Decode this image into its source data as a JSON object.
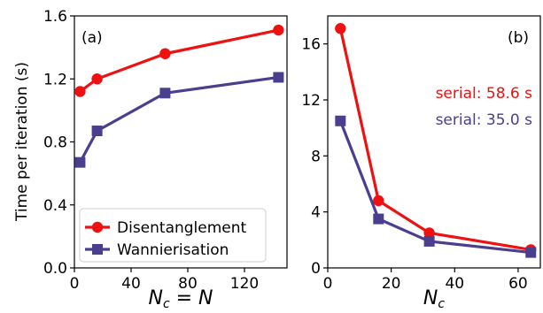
{
  "colors": {
    "disentanglement": "#ee1111",
    "wannierisation": "#4a3f8f"
  },
  "chart_data": [
    {
      "type": "line",
      "panel_label": "(a)",
      "ylabel": "Time per iteration (s)",
      "xlabel_main": "N",
      "xlabel_sub": "c",
      "xlabel_rest": " = N",
      "xlim": [
        0,
        150
      ],
      "ylim": [
        0,
        1.6
      ],
      "xticks": [
        0,
        40,
        80,
        120
      ],
      "yticks": [
        0.0,
        0.4,
        0.8,
        1.2,
        1.6
      ],
      "xtick_labels": [
        "0",
        "40",
        "80",
        "120"
      ],
      "ytick_labels": [
        "0.0",
        "0.4",
        "0.8",
        "1.2",
        "1.6"
      ],
      "legend_position": "bottom-right",
      "series": [
        {
          "name": "Disentanglement",
          "marker": "circle",
          "x": [
            4,
            16,
            64,
            144
          ],
          "y": [
            1.12,
            1.2,
            1.36,
            1.51
          ]
        },
        {
          "name": "Wannierisation",
          "marker": "square",
          "x": [
            4,
            16,
            64,
            144
          ],
          "y": [
            0.67,
            0.87,
            1.11,
            1.21
          ]
        }
      ]
    },
    {
      "type": "line",
      "panel_label": "(b)",
      "xlabel_main": "N",
      "xlabel_sub": "c",
      "xlim": [
        0,
        67
      ],
      "ylim": [
        0,
        18
      ],
      "xticks": [
        0,
        20,
        40,
        60
      ],
      "yticks": [
        0,
        4,
        8,
        12,
        16
      ],
      "xtick_labels": [
        "0",
        "20",
        "40",
        "60"
      ],
      "ytick_labels": [
        "0",
        "4",
        "8",
        "12",
        "16"
      ],
      "annotations": [
        {
          "text": "serial: 58.6 s",
          "series": 0
        },
        {
          "text": "serial: 35.0 s",
          "series": 1
        }
      ],
      "series": [
        {
          "marker": "circle",
          "x": [
            4,
            16,
            32,
            64
          ],
          "y": [
            17.1,
            4.8,
            2.5,
            1.3
          ]
        },
        {
          "marker": "square",
          "x": [
            4,
            16,
            32,
            64
          ],
          "y": [
            10.5,
            3.5,
            1.9,
            1.1
          ]
        }
      ]
    }
  ]
}
